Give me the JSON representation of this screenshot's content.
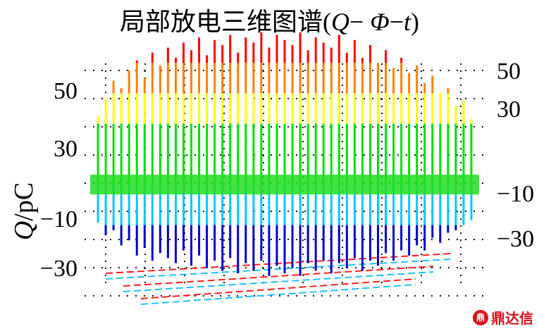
{
  "title_main": "局部放电三维图谱(",
  "title_q": "Q",
  "title_sep1": "− ",
  "title_phi": "Φ",
  "title_sep2": "−",
  "title_t": "t",
  "title_end": ")",
  "watermark": {
    "logo": "鼎",
    "text": "鼎达信"
  },
  "chart_data": {
    "type": "3d-waterfall",
    "title": "局部放电三维图谱(Q− Φ−t)",
    "zlabel": "Q/pC",
    "left_axis_ticks": [
      50,
      30,
      -10,
      -30
    ],
    "right_axis_ticks": [
      50,
      30,
      -10,
      -30
    ],
    "zlim": [
      -40,
      60
    ],
    "colormap": [
      "#0000c8",
      "#00c8ff",
      "#00e000",
      "#ffff00",
      "#ff8000",
      "#ff0000"
    ],
    "baseline_color": "#22dd22",
    "floor_line_colors": [
      "#ff2020",
      "#20c0ff"
    ],
    "grid": "dotted",
    "spikes": [
      {
        "x": 0.02,
        "pos": 27,
        "neg": 15
      },
      {
        "x": 0.04,
        "pos": 34,
        "neg": 20
      },
      {
        "x": 0.06,
        "pos": 41,
        "neg": 18
      },
      {
        "x": 0.08,
        "pos": 38,
        "neg": 24
      },
      {
        "x": 0.1,
        "pos": 45,
        "neg": 22
      },
      {
        "x": 0.12,
        "pos": 49,
        "neg": 28
      },
      {
        "x": 0.14,
        "pos": 42,
        "neg": 25
      },
      {
        "x": 0.16,
        "pos": 52,
        "neg": 30
      },
      {
        "x": 0.18,
        "pos": 47,
        "neg": 27
      },
      {
        "x": 0.2,
        "pos": 54,
        "neg": 29
      },
      {
        "x": 0.22,
        "pos": 50,
        "neg": 31
      },
      {
        "x": 0.24,
        "pos": 56,
        "neg": 26
      },
      {
        "x": 0.26,
        "pos": 53,
        "neg": 32
      },
      {
        "x": 0.28,
        "pos": 58,
        "neg": 28
      },
      {
        "x": 0.3,
        "pos": 51,
        "neg": 33
      },
      {
        "x": 0.32,
        "pos": 57,
        "neg": 30
      },
      {
        "x": 0.34,
        "pos": 55,
        "neg": 34
      },
      {
        "x": 0.36,
        "pos": 59,
        "neg": 29
      },
      {
        "x": 0.38,
        "pos": 52,
        "neg": 35
      },
      {
        "x": 0.4,
        "pos": 58,
        "neg": 31
      },
      {
        "x": 0.42,
        "pos": 56,
        "neg": 34
      },
      {
        "x": 0.44,
        "pos": 60,
        "neg": 30
      },
      {
        "x": 0.46,
        "pos": 54,
        "neg": 36
      },
      {
        "x": 0.48,
        "pos": 59,
        "neg": 32
      },
      {
        "x": 0.5,
        "pos": 57,
        "neg": 35
      },
      {
        "x": 0.52,
        "pos": 55,
        "neg": 33
      },
      {
        "x": 0.54,
        "pos": 60,
        "neg": 36
      },
      {
        "x": 0.56,
        "pos": 53,
        "neg": 31
      },
      {
        "x": 0.58,
        "pos": 58,
        "neg": 34
      },
      {
        "x": 0.6,
        "pos": 56,
        "neg": 30
      },
      {
        "x": 0.62,
        "pos": 54,
        "neg": 35
      },
      {
        "x": 0.64,
        "pos": 59,
        "neg": 31
      },
      {
        "x": 0.66,
        "pos": 52,
        "neg": 33
      },
      {
        "x": 0.68,
        "pos": 57,
        "neg": 29
      },
      {
        "x": 0.7,
        "pos": 50,
        "neg": 34
      },
      {
        "x": 0.72,
        "pos": 55,
        "neg": 30
      },
      {
        "x": 0.74,
        "pos": 48,
        "neg": 32
      },
      {
        "x": 0.76,
        "pos": 53,
        "neg": 27
      },
      {
        "x": 0.78,
        "pos": 46,
        "neg": 30
      },
      {
        "x": 0.8,
        "pos": 50,
        "neg": 26
      },
      {
        "x": 0.82,
        "pos": 44,
        "neg": 28
      },
      {
        "x": 0.84,
        "pos": 47,
        "neg": 24
      },
      {
        "x": 0.86,
        "pos": 40,
        "neg": 26
      },
      {
        "x": 0.88,
        "pos": 43,
        "neg": 21
      },
      {
        "x": 0.9,
        "pos": 36,
        "neg": 23
      },
      {
        "x": 0.92,
        "pos": 38,
        "neg": 19
      },
      {
        "x": 0.94,
        "pos": 31,
        "neg": 18
      },
      {
        "x": 0.96,
        "pos": 33,
        "neg": 16
      },
      {
        "x": 0.98,
        "pos": 26,
        "neg": 14
      }
    ]
  }
}
